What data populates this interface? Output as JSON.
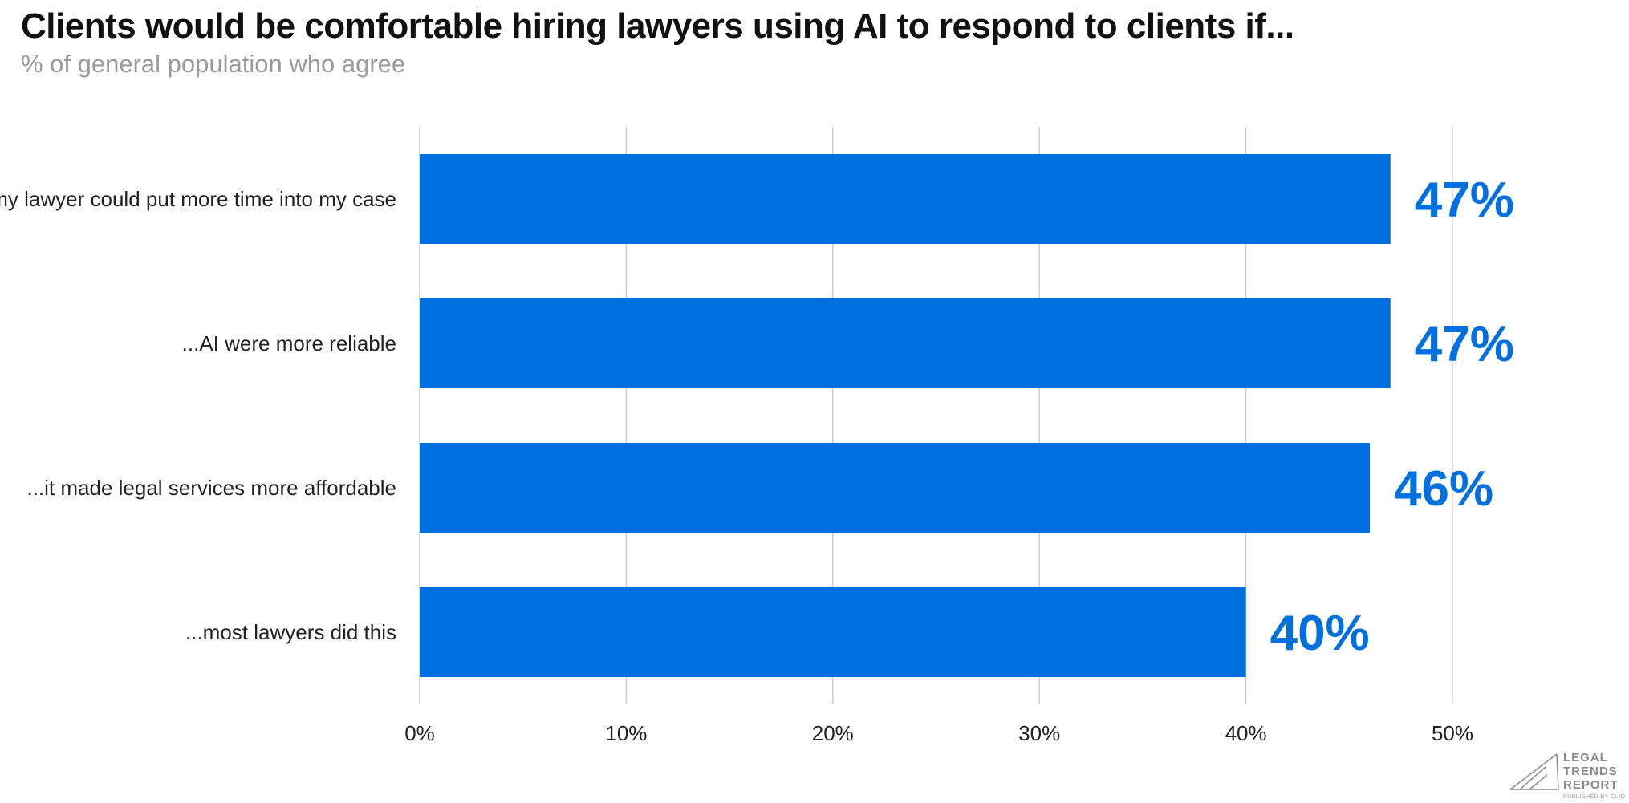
{
  "chart_data": {
    "type": "bar",
    "orientation": "horizontal",
    "title": "Clients would be comfortable hiring lawyers using AI to respond to clients if...",
    "subtitle": "% of general population who agree",
    "categories": [
      "...my lawyer could put more time into my case",
      "...AI were more reliable",
      "...it made legal services more affordable",
      "...most lawyers did this"
    ],
    "values": [
      47,
      47,
      46,
      40
    ],
    "value_labels": [
      "47%",
      "47%",
      "46%",
      "40%"
    ],
    "xlim": [
      0,
      50
    ],
    "x_ticks": [
      0,
      10,
      20,
      30,
      40,
      50
    ],
    "x_tick_labels": [
      "0%",
      "10%",
      "20%",
      "30%",
      "40%",
      "50%"
    ],
    "grid": true,
    "bar_color": "#0070E0",
    "label_color": "#0070E0",
    "grid_color": "#d0d0d0"
  },
  "logo": {
    "lines": [
      "LEGAL",
      "TRENDS",
      "REPORT"
    ],
    "sub": "PUBLISHED BY CLIO"
  }
}
